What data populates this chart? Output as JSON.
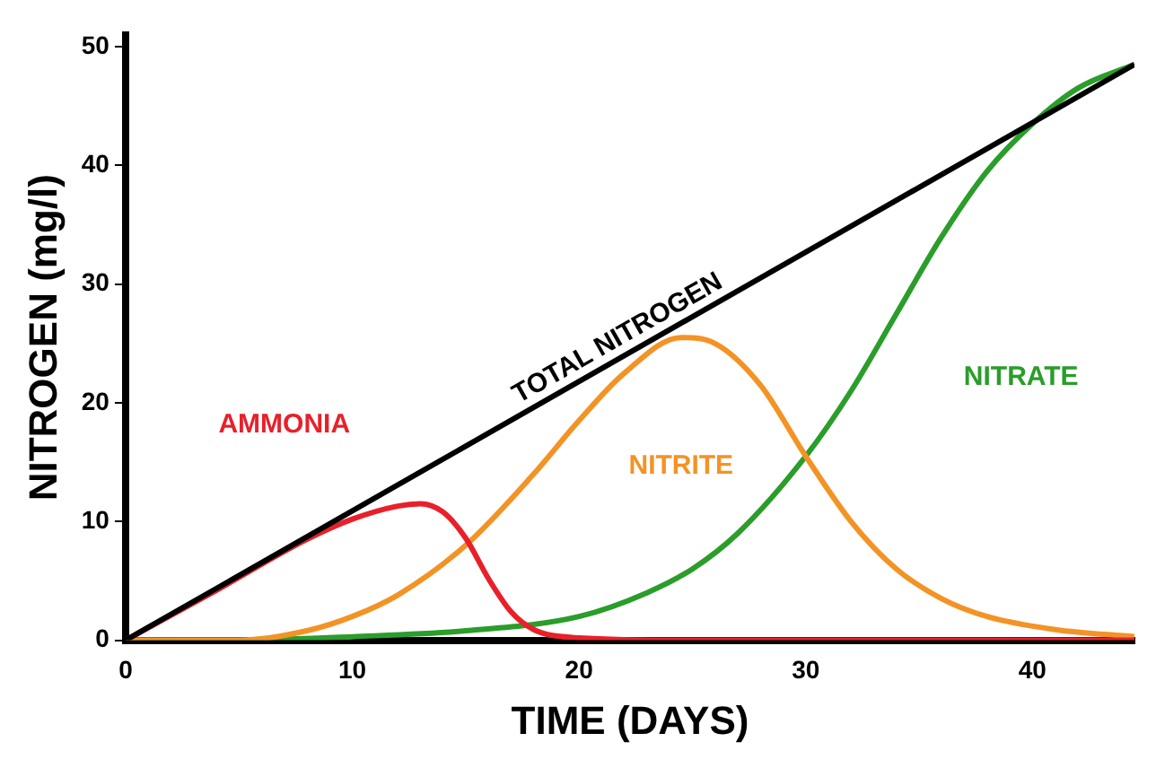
{
  "chart_data": {
    "type": "line",
    "xlabel": "TIME (DAYS)",
    "ylabel": "NITROGEN (mg/l)",
    "xlim": [
      0,
      44.5
    ],
    "ylim": [
      0,
      51
    ],
    "xticks": [
      0,
      10,
      20,
      30,
      40
    ],
    "yticks": [
      0,
      10,
      20,
      30,
      40,
      50
    ],
    "grid": false,
    "legend": false,
    "marker": "none",
    "line_style": "solid",
    "series": [
      {
        "name": "TOTAL NITROGEN",
        "color": "#000000",
        "x": [
          0,
          44.5
        ],
        "values": [
          0,
          48.5
        ]
      },
      {
        "name": "AMMONIA",
        "color": "#e8202a",
        "x": [
          0,
          4,
          8,
          10,
          12,
          13,
          14,
          15,
          16,
          17,
          18,
          20,
          25,
          44.5
        ],
        "values": [
          0,
          4.2,
          8.5,
          10.2,
          11.3,
          11.5,
          10.8,
          8.6,
          5.2,
          2.4,
          0.9,
          0.2,
          0,
          0
        ]
      },
      {
        "name": "NITRITE",
        "color": "#f39325",
        "x": [
          0,
          5,
          8,
          10,
          12,
          15,
          18,
          20,
          22,
          24.5,
          26,
          28,
          30,
          32,
          34,
          36,
          38,
          41,
          44.5
        ],
        "values": [
          0,
          0,
          0.8,
          2,
          3.8,
          8,
          14,
          18.5,
          22.5,
          25.5,
          25,
          21.5,
          15.5,
          10,
          6,
          3.5,
          2,
          0.9,
          0.3
        ]
      },
      {
        "name": "NITRATE",
        "color": "#2a9d2a",
        "x": [
          0,
          5,
          10,
          15,
          20,
          23,
          25,
          27,
          30,
          32,
          34,
          36,
          38,
          40,
          42,
          44.5
        ],
        "values": [
          0,
          0,
          0.3,
          0.8,
          2,
          4,
          6,
          9,
          15.5,
          21,
          27.5,
          34,
          39.5,
          43.5,
          46.5,
          48.5
        ]
      }
    ]
  }
}
